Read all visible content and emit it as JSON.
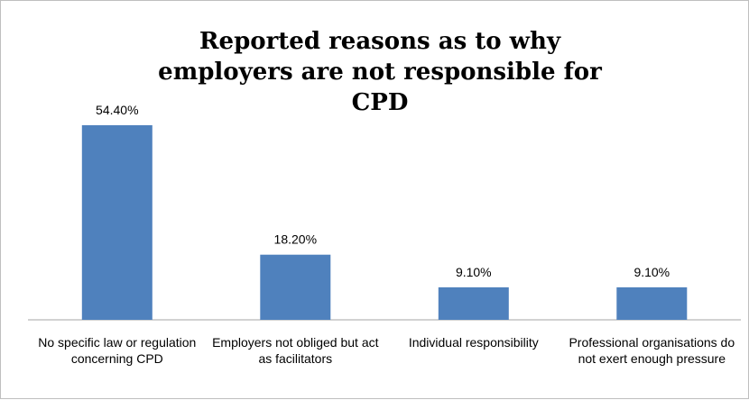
{
  "chart_data": {
    "type": "bar",
    "title": "Reported reasons as to why employers are not responsible for CPD",
    "categories": [
      "No specific law or regulation concerning CPD",
      "Employers not obliged but act as facilitators",
      "Individual responsibility",
      "Professional organisations do not exert enough pressure"
    ],
    "values": [
      54.4,
      18.2,
      9.1,
      9.1
    ],
    "data_labels": [
      "54.40%",
      "18.20%",
      "9.10%",
      "9.10%"
    ],
    "xlabel": "",
    "ylabel": "",
    "ylim": [
      0,
      60
    ],
    "grid": false,
    "legend": "none",
    "bar_color": "#4f81bd",
    "axis_color": "#a6a6a6"
  }
}
